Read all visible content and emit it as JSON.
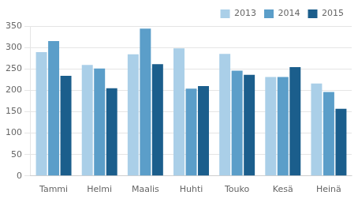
{
  "chart_data": {
    "type": "bar",
    "categories": [
      "Tammi",
      "Helmi",
      "Maalis",
      "Huhti",
      "Touko",
      "Kesä",
      "Heinä"
    ],
    "series": [
      {
        "name": "2013",
        "color": "#aacfe8",
        "values": [
          289,
          259,
          284,
          298,
          285,
          231,
          216
        ]
      },
      {
        "name": "2014",
        "color": "#5b9ec9",
        "values": [
          315,
          251,
          344,
          204,
          246,
          231,
          196
        ]
      },
      {
        "name": "2015",
        "color": "#1b5e8c",
        "values": [
          234,
          205,
          261,
          210,
          236,
          254,
          157
        ]
      }
    ],
    "ylim": [
      0,
      350
    ],
    "yticks": [
      0,
      50,
      100,
      150,
      200,
      250,
      300,
      350
    ],
    "grid": true,
    "legend": "upper right"
  }
}
